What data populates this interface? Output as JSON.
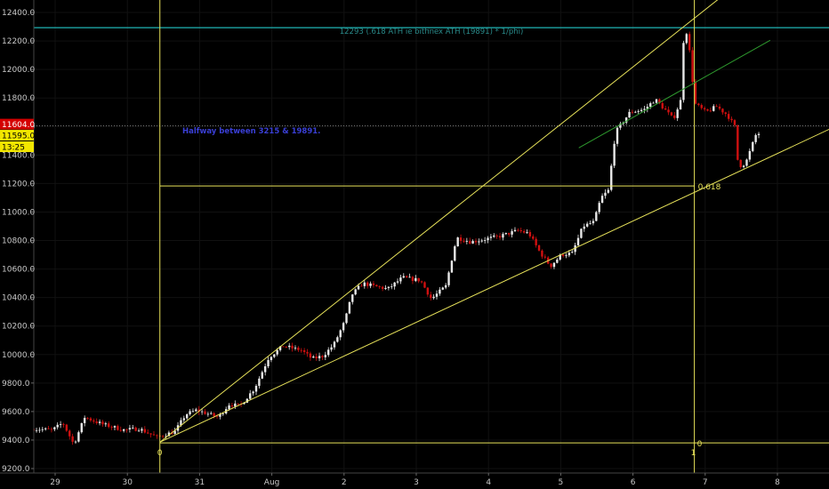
{
  "chart_data": {
    "type": "candlestick",
    "ylim": [
      9200,
      12500
    ],
    "y_ticks": [
      "12400.0",
      "12200.0",
      "12000.0",
      "11800.0",
      "11600.0",
      "11400.0",
      "11200.0",
      "11000.0",
      "10800.0",
      "10600.0",
      "10400.0",
      "10200.0",
      "10000.0",
      "9800.0",
      "9600.0",
      "9400.0",
      "9200.0"
    ],
    "y_tick_values": [
      12400,
      12200,
      12000,
      11800,
      11600,
      11400,
      11200,
      11000,
      10800,
      10600,
      10400,
      10200,
      10000,
      9800,
      9600,
      9400,
      9200
    ],
    "x_ticks": [
      "29",
      "30",
      "31",
      "Aug",
      "2",
      "3",
      "4",
      "5",
      "6",
      "7",
      "8"
    ],
    "x_tick_values": [
      29,
      30,
      31,
      32,
      33,
      34,
      35,
      36,
      37,
      38,
      39
    ],
    "xlim": [
      28.7,
      39.8
    ],
    "price_labels": {
      "last": "11604.0",
      "mark": "11595.0",
      "countdown": "13:25",
      "last_value": 11604,
      "mark_value": 11595
    },
    "annotations": {
      "cyan_level_text": "12293 (.618 ATH ie  bitfinex ATH (19891) * 1/phi)",
      "cyan_level_value": 12293,
      "halfway_text": "Halfway between 3215 & 19891.",
      "fib_0618": "0.618",
      "fib_0618_value": 11183,
      "fib_0": "0",
      "fib_1": "1",
      "start_label": "0",
      "low_level_value": 9380
    },
    "trend_lines": [
      {
        "x1": 30.45,
        "y1": 9385,
        "x2": 38.2,
        "y2": 12500
      },
      {
        "x1": 30.45,
        "y1": 9385,
        "x2": 39.8,
        "y2": 11600
      },
      {
        "x1": 36.25,
        "y1": 11450,
        "x2": 38.9,
        "y2": 12205
      }
    ],
    "vertical_lines": [
      30.45,
      37.85
    ],
    "keypoints": [
      [
        28.7,
        9480
      ],
      [
        29.0,
        9470
      ],
      [
        29.15,
        9520
      ],
      [
        29.3,
        9370
      ],
      [
        29.45,
        9560
      ],
      [
        29.7,
        9510
      ],
      [
        30.0,
        9470
      ],
      [
        30.2,
        9480
      ],
      [
        30.45,
        9420
      ],
      [
        30.7,
        9460
      ],
      [
        30.85,
        9580
      ],
      [
        31.0,
        9610
      ],
      [
        31.3,
        9560
      ],
      [
        31.45,
        9650
      ],
      [
        31.6,
        9640
      ],
      [
        31.8,
        9760
      ],
      [
        32.0,
        9980
      ],
      [
        32.2,
        10060
      ],
      [
        32.45,
        10030
      ],
      [
        32.6,
        9970
      ],
      [
        32.75,
        9990
      ],
      [
        32.9,
        10070
      ],
      [
        33.05,
        10230
      ],
      [
        33.15,
        10420
      ],
      [
        33.3,
        10500
      ],
      [
        33.45,
        10480
      ],
      [
        33.65,
        10460
      ],
      [
        33.85,
        10540
      ],
      [
        34.1,
        10520
      ],
      [
        34.25,
        10390
      ],
      [
        34.45,
        10480
      ],
      [
        34.6,
        10820
      ],
      [
        34.8,
        10790
      ],
      [
        35.0,
        10810
      ],
      [
        35.2,
        10830
      ],
      [
        35.45,
        10870
      ],
      [
        35.6,
        10850
      ],
      [
        35.75,
        10720
      ],
      [
        35.9,
        10620
      ],
      [
        36.05,
        10700
      ],
      [
        36.2,
        10710
      ],
      [
        36.35,
        10900
      ],
      [
        36.5,
        10930
      ],
      [
        36.6,
        11100
      ],
      [
        36.7,
        11150
      ],
      [
        36.8,
        11560
      ],
      [
        37.0,
        11700
      ],
      [
        37.2,
        11720
      ],
      [
        37.35,
        11790
      ],
      [
        37.5,
        11710
      ],
      [
        37.6,
        11650
      ],
      [
        37.7,
        11780
      ],
      [
        37.75,
        12280
      ],
      [
        37.8,
        12250
      ],
      [
        37.9,
        11760
      ],
      [
        38.05,
        11700
      ],
      [
        38.2,
        11740
      ],
      [
        38.35,
        11680
      ],
      [
        38.45,
        11600
      ],
      [
        38.5,
        11320
      ],
      [
        38.6,
        11340
      ],
      [
        38.75,
        11550
      ]
    ]
  }
}
